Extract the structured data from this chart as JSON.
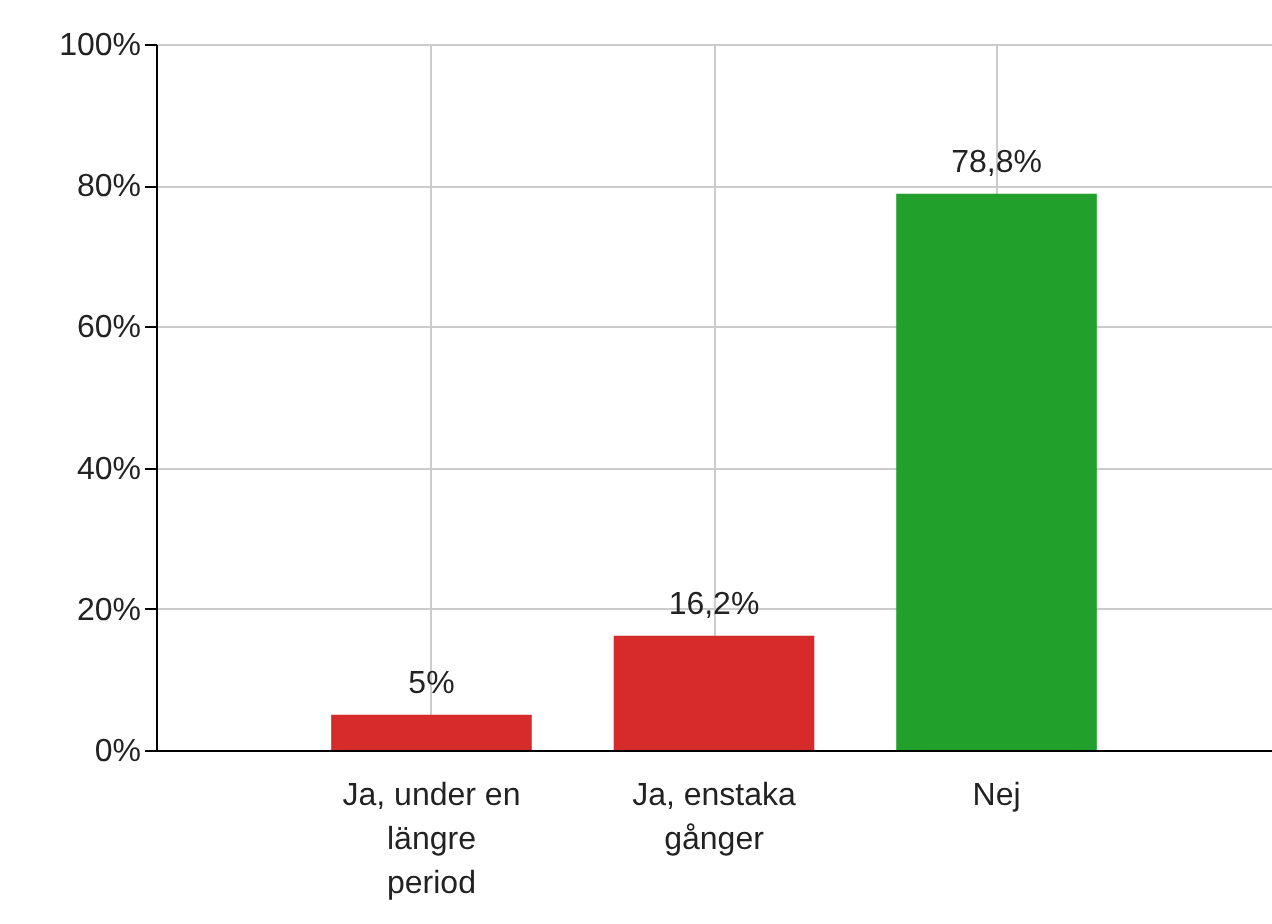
{
  "chart_data": {
    "type": "bar",
    "categories": [
      "Ja, under en längre period",
      "Ja, enstaka gånger",
      "Nej"
    ],
    "values": [
      5,
      16.2,
      78.8
    ],
    "colors": [
      "#d62b2b",
      "#d62b2b",
      "#21a12b"
    ],
    "value_labels": [
      "5%",
      "16,2%",
      "78,8%"
    ],
    "ylim": [
      0,
      100
    ],
    "yticks": [
      {
        "value": 0,
        "label": "0%"
      },
      {
        "value": 20,
        "label": "20%"
      },
      {
        "value": 40,
        "label": "40%"
      },
      {
        "value": 60,
        "label": "60%"
      },
      {
        "value": 80,
        "label": "80%"
      },
      {
        "value": 100,
        "label": "100%"
      }
    ],
    "grid": true
  }
}
